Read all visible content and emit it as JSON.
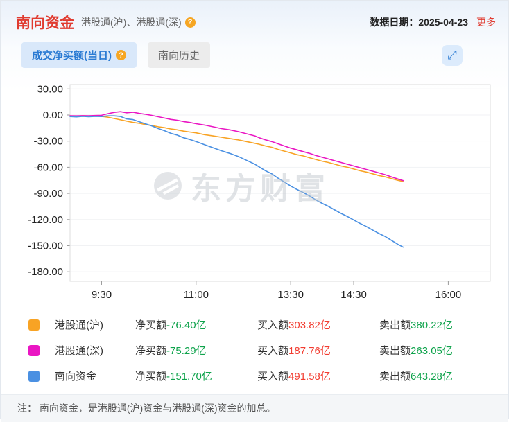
{
  "header": {
    "title": "南向资金",
    "subtitle": "港股通(沪)、港股通(深)",
    "date_label": "数据日期：",
    "date_value": "2025-04-23",
    "more_link": "更多"
  },
  "icons": {
    "help": "?",
    "expand": "⤢"
  },
  "tabs": [
    {
      "label": "成交净买额(当日)",
      "active": true
    },
    {
      "label": "南向历史",
      "active": false
    }
  ],
  "watermark": "东方财富",
  "chart_data": {
    "type": "line",
    "title": "",
    "xlabel": "",
    "ylabel": "",
    "x_unit": "trading minutes from 9:00 (lunch break 12:00-13:00 removed)",
    "xlim": [
      0,
      400
    ],
    "ylim": [
      -180,
      30
    ],
    "grid": "faint horizontal",
    "legend_position": "below chart",
    "x_ticks": [
      {
        "label": "9:30",
        "min": 30
      },
      {
        "label": "11:00",
        "min": 120
      },
      {
        "label": "13:30",
        "min": 210
      },
      {
        "label": "14:30",
        "min": 270
      },
      {
        "label": "16:00",
        "min": 360
      }
    ],
    "y_ticks": [
      {
        "label": "30.00",
        "value": 30
      },
      {
        "label": "0.00",
        "value": 0
      },
      {
        "label": "-30.00",
        "value": -30
      },
      {
        "label": "-60.00",
        "value": -60
      },
      {
        "label": "-90.00",
        "value": -90
      },
      {
        "label": "-120.00",
        "value": -120
      },
      {
        "label": "-150.00",
        "value": -150
      },
      {
        "label": "-180.00",
        "value": -180
      }
    ],
    "x": [
      0,
      6,
      12,
      18,
      24,
      30,
      36,
      42,
      48,
      54,
      60,
      66,
      72,
      78,
      84,
      90,
      96,
      102,
      108,
      114,
      120,
      128,
      136,
      144,
      152,
      160,
      168,
      176,
      180,
      186,
      192,
      198,
      204,
      210,
      216,
      222,
      228,
      234,
      240,
      246,
      252,
      258,
      264,
      270,
      276,
      282,
      288,
      294,
      300,
      306,
      312,
      317
    ],
    "series": [
      {
        "name": "港股通(沪)",
        "color": "#f8a324",
        "final_value": -76.4,
        "values": [
          -1.0,
          -1.2,
          -0.8,
          -1.1,
          -0.9,
          -1.5,
          -2.5,
          -4.0,
          -5.5,
          -7.0,
          -8.5,
          -9.5,
          -11.0,
          -12.0,
          -13.5,
          -14.5,
          -16.0,
          -17.0,
          -18.5,
          -19.5,
          -20.5,
          -22.5,
          -24.0,
          -25.5,
          -27.0,
          -28.5,
          -30.5,
          -32.5,
          -33.5,
          -35.5,
          -37.0,
          -39.5,
          -41.5,
          -43.5,
          -45.5,
          -47.0,
          -49.0,
          -51.0,
          -53.0,
          -54.5,
          -56.5,
          -58.5,
          -60.0,
          -62.0,
          -64.0,
          -65.5,
          -67.5,
          -69.5,
          -71.0,
          -73.0,
          -75.0,
          -76.4
        ]
      },
      {
        "name": "港股通(深)",
        "color": "#ea16c3",
        "final_value": -75.29,
        "values": [
          -0.8,
          -1.0,
          -0.7,
          -0.9,
          -0.6,
          -0.3,
          1.5,
          3.0,
          3.8,
          2.5,
          3.2,
          1.8,
          0.8,
          -0.5,
          -2.0,
          -3.5,
          -5.0,
          -6.0,
          -7.5,
          -8.5,
          -10.0,
          -11.5,
          -13.5,
          -15.5,
          -17.0,
          -19.0,
          -21.5,
          -24.0,
          -26.0,
          -28.5,
          -30.5,
          -33.0,
          -35.5,
          -38.0,
          -40.0,
          -42.0,
          -44.0,
          -46.5,
          -48.5,
          -50.5,
          -52.5,
          -54.5,
          -56.5,
          -58.5,
          -60.5,
          -62.5,
          -64.5,
          -66.5,
          -68.5,
          -71.0,
          -73.5,
          -75.29
        ]
      },
      {
        "name": "南向资金",
        "color": "#4a90e2",
        "final_value": -151.7,
        "values": [
          -1.8,
          -2.2,
          -1.5,
          -2.0,
          -1.5,
          -1.8,
          -1.0,
          -1.0,
          -1.7,
          -4.5,
          -5.3,
          -7.7,
          -10.2,
          -12.5,
          -15.5,
          -18.0,
          -21.0,
          -23.0,
          -26.0,
          -28.0,
          -30.5,
          -34.0,
          -37.5,
          -41.0,
          -44.0,
          -47.5,
          -52.0,
          -56.5,
          -59.5,
          -64.0,
          -67.5,
          -72.5,
          -77.0,
          -81.5,
          -85.5,
          -89.0,
          -93.0,
          -97.5,
          -101.5,
          -105.0,
          -109.0,
          -113.0,
          -116.5,
          -120.5,
          -124.5,
          -128.0,
          -132.0,
          -136.0,
          -139.5,
          -144.0,
          -148.5,
          -151.7
        ]
      }
    ]
  },
  "legend": {
    "net_label": "净买额",
    "buy_label": "买入额",
    "sell_label": "卖出额",
    "rows": [
      {
        "name": "港股通(沪)",
        "net": "-76.40亿",
        "buy": "303.82亿",
        "sell": "380.22亿"
      },
      {
        "name": "港股通(深)",
        "net": "-75.29亿",
        "buy": "187.76亿",
        "sell": "263.05亿"
      },
      {
        "name": "南向资金",
        "net": "-151.70亿",
        "buy": "491.58亿",
        "sell": "643.28亿"
      }
    ]
  },
  "note": "注： 南向资金，是港股通(沪)资金与港股通(深)资金的加总。",
  "colors": {
    "accent_red": "#e03b30",
    "value_red": "#f23c30",
    "value_green": "#0fa34c",
    "tab_blue": "#2b7bd3",
    "tab_active_bg": "#d9e8fa",
    "tab_inactive_bg": "#ececec",
    "tab_inactive_text": "#666666",
    "help_orange": "#f6a623",
    "expand_bg": "#dcebfc"
  }
}
